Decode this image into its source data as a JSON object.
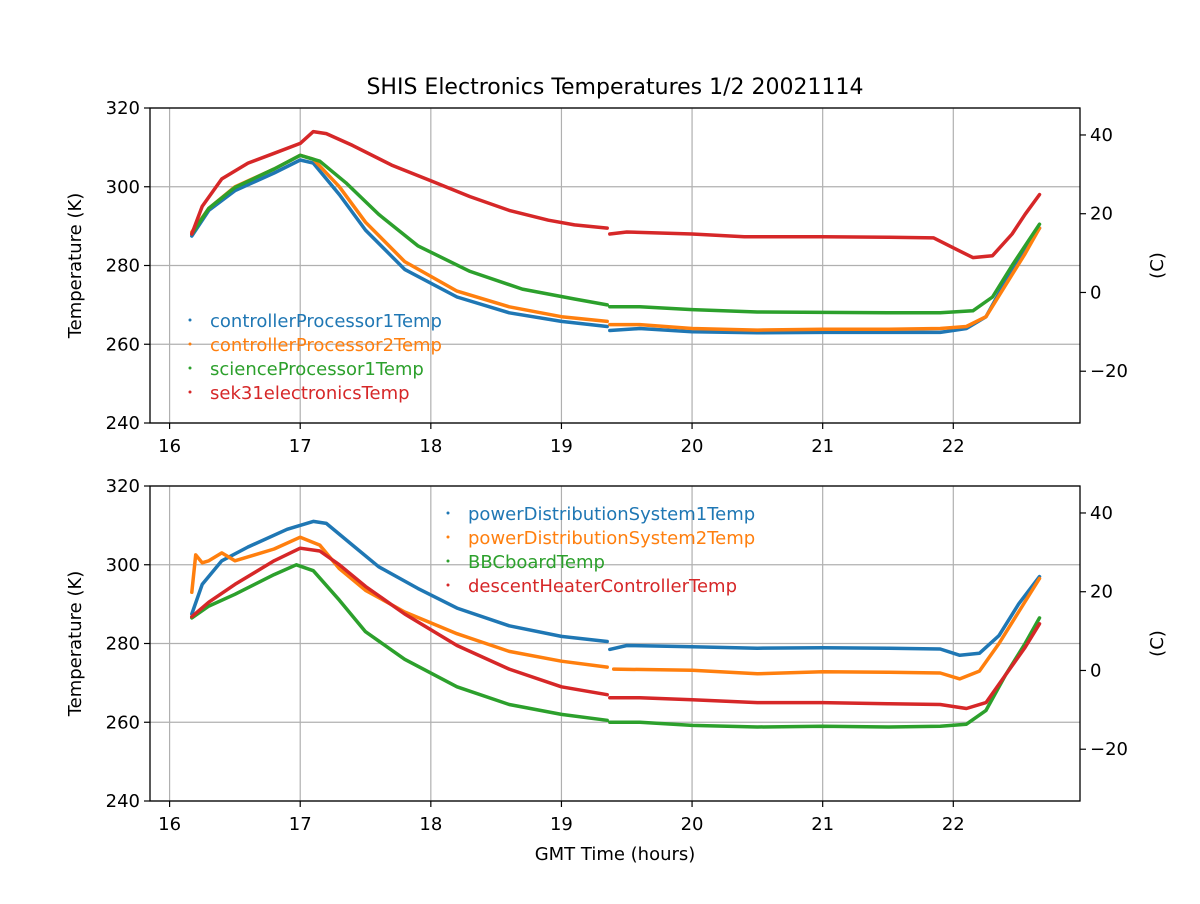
{
  "figure": {
    "title": "SHIS Electronics Temperatures 1/2 20021114",
    "xlabel": "GMT Time (hours)"
  },
  "chart_data": [
    {
      "type": "line",
      "ylabel": "Temperature (K)",
      "ylabel_right": "(C)",
      "xlim": [
        15.85,
        22.97
      ],
      "ylim": [
        240,
        320
      ],
      "xticks": [
        16,
        17,
        18,
        19,
        20,
        21,
        22
      ],
      "yticks": [
        240,
        260,
        280,
        300,
        320
      ],
      "yticks_right": [
        -20,
        0,
        20,
        40
      ],
      "grid": true,
      "legend_position": "lower-left",
      "gap_after_hour": 19.35,
      "series": [
        {
          "name": "controllerProcessor1Temp",
          "color": "#1f77b4",
          "points": [
            [
              16.17,
              287.5
            ],
            [
              16.3,
              294
            ],
            [
              16.5,
              299
            ],
            [
              16.8,
              303.5
            ],
            [
              17.0,
              306.8
            ],
            [
              17.1,
              306
            ],
            [
              17.3,
              298
            ],
            [
              17.5,
              289
            ],
            [
              17.8,
              279
            ],
            [
              18.2,
              272
            ],
            [
              18.6,
              268
            ],
            [
              19.0,
              265.8
            ],
            [
              19.35,
              264.5
            ],
            [
              19.37,
              263.5
            ],
            [
              19.6,
              264
            ],
            [
              20.0,
              263.2
            ],
            [
              20.5,
              262.9
            ],
            [
              21.0,
              263
            ],
            [
              21.5,
              263
            ],
            [
              21.9,
              263
            ],
            [
              22.1,
              264
            ],
            [
              22.25,
              267
            ],
            [
              22.4,
              276
            ],
            [
              22.55,
              284
            ],
            [
              22.66,
              289.5
            ]
          ]
        },
        {
          "name": "controllerProcessor2Temp",
          "color": "#ff7f0e",
          "points": [
            [
              16.17,
              288.5
            ],
            [
              16.3,
              294.5
            ],
            [
              16.5,
              300
            ],
            [
              16.8,
              304.5
            ],
            [
              17.0,
              308
            ],
            [
              17.1,
              307
            ],
            [
              17.3,
              300
            ],
            [
              17.5,
              291
            ],
            [
              17.8,
              281
            ],
            [
              18.2,
              273.5
            ],
            [
              18.6,
              269.5
            ],
            [
              19.0,
              267
            ],
            [
              19.35,
              265.8
            ],
            [
              19.37,
              265
            ],
            [
              19.6,
              265
            ],
            [
              20.0,
              264
            ],
            [
              20.5,
              263.6
            ],
            [
              21.0,
              263.8
            ],
            [
              21.5,
              263.8
            ],
            [
              21.9,
              264
            ],
            [
              22.1,
              264.5
            ],
            [
              22.25,
              267
            ],
            [
              22.4,
              275
            ],
            [
              22.55,
              283
            ],
            [
              22.66,
              289.5
            ]
          ]
        },
        {
          "name": "scienceProcessor1Temp",
          "color": "#2ca02c",
          "points": [
            [
              16.17,
              288
            ],
            [
              16.3,
              294.5
            ],
            [
              16.5,
              299.8
            ],
            [
              16.8,
              304.5
            ],
            [
              17.0,
              308
            ],
            [
              17.15,
              306.5
            ],
            [
              17.35,
              301
            ],
            [
              17.6,
              293
            ],
            [
              17.9,
              285
            ],
            [
              18.3,
              278.5
            ],
            [
              18.7,
              274
            ],
            [
              19.1,
              271.5
            ],
            [
              19.35,
              270
            ],
            [
              19.37,
              269.5
            ],
            [
              19.6,
              269.5
            ],
            [
              20.0,
              268.8
            ],
            [
              20.5,
              268.2
            ],
            [
              21.0,
              268.1
            ],
            [
              21.5,
              268
            ],
            [
              21.9,
              268
            ],
            [
              22.15,
              268.5
            ],
            [
              22.3,
              272
            ],
            [
              22.45,
              280
            ],
            [
              22.55,
              285
            ],
            [
              22.66,
              290.5
            ]
          ]
        },
        {
          "name": "sek31electronicsTemp",
          "color": "#d62728",
          "points": [
            [
              16.17,
              288
            ],
            [
              16.25,
              295
            ],
            [
              16.4,
              302
            ],
            [
              16.6,
              306
            ],
            [
              16.8,
              308.5
            ],
            [
              17.0,
              311
            ],
            [
              17.1,
              314
            ],
            [
              17.2,
              313.5
            ],
            [
              17.4,
              310.5
            ],
            [
              17.7,
              305.5
            ],
            [
              18.0,
              301.5
            ],
            [
              18.3,
              297.5
            ],
            [
              18.6,
              294
            ],
            [
              18.9,
              291.5
            ],
            [
              19.1,
              290.3
            ],
            [
              19.35,
              289.5
            ],
            [
              19.37,
              288
            ],
            [
              19.5,
              288.5
            ],
            [
              20.0,
              288
            ],
            [
              20.4,
              287.3
            ],
            [
              21.0,
              287.3
            ],
            [
              21.5,
              287.2
            ],
            [
              21.85,
              287
            ],
            [
              22.0,
              284.5
            ],
            [
              22.15,
              282
            ],
            [
              22.3,
              282.5
            ],
            [
              22.45,
              288
            ],
            [
              22.55,
              293
            ],
            [
              22.66,
              298
            ]
          ]
        }
      ]
    },
    {
      "type": "line",
      "ylabel": "Temperature (K)",
      "ylabel_right": "(C)",
      "xlim": [
        15.85,
        22.97
      ],
      "ylim": [
        240,
        320
      ],
      "xticks": [
        16,
        17,
        18,
        19,
        20,
        21,
        22
      ],
      "yticks": [
        240,
        260,
        280,
        300,
        320
      ],
      "yticks_right": [
        -20,
        0,
        20,
        40
      ],
      "grid": true,
      "legend_position": "upper-center",
      "series": [
        {
          "name": "powerDistributionSystem1Temp",
          "color": "#1f77b4",
          "points": [
            [
              16.17,
              287.5
            ],
            [
              16.25,
              295
            ],
            [
              16.4,
              301
            ],
            [
              16.6,
              304.5
            ],
            [
              16.9,
              309
            ],
            [
              17.1,
              311
            ],
            [
              17.2,
              310.5
            ],
            [
              17.4,
              305
            ],
            [
              17.6,
              299.5
            ],
            [
              17.9,
              294
            ],
            [
              18.2,
              289
            ],
            [
              18.6,
              284.5
            ],
            [
              19.0,
              281.8
            ],
            [
              19.35,
              280.5
            ],
            [
              19.37,
              278.5
            ],
            [
              19.5,
              279.5
            ],
            [
              20.0,
              279.2
            ],
            [
              20.5,
              278.8
            ],
            [
              21.0,
              278.9
            ],
            [
              21.5,
              278.8
            ],
            [
              21.9,
              278.6
            ],
            [
              22.05,
              277
            ],
            [
              22.2,
              277.5
            ],
            [
              22.35,
              282
            ],
            [
              22.5,
              290
            ],
            [
              22.66,
              297
            ]
          ]
        },
        {
          "name": "powerDistributionSystem2Temp",
          "color": "#ff7f0e",
          "points": [
            [
              16.17,
              293
            ],
            [
              16.2,
              302.5
            ],
            [
              16.25,
              300.5
            ],
            [
              16.3,
              301
            ],
            [
              16.4,
              303
            ],
            [
              16.5,
              301
            ],
            [
              16.65,
              302.5
            ],
            [
              16.8,
              304
            ],
            [
              17.0,
              307
            ],
            [
              17.15,
              305
            ],
            [
              17.3,
              299
            ],
            [
              17.5,
              293.5
            ],
            [
              17.8,
              288
            ],
            [
              18.2,
              282.5
            ],
            [
              18.6,
              278
            ],
            [
              19.0,
              275.5
            ],
            [
              19.35,
              274
            ],
            [
              19.37,
              271.5
            ],
            [
              19.4,
              273.5
            ],
            [
              20.0,
              273.2
            ],
            [
              20.5,
              272.3
            ],
            [
              21.0,
              272.8
            ],
            [
              21.5,
              272.7
            ],
            [
              21.9,
              272.5
            ],
            [
              22.05,
              271
            ],
            [
              22.2,
              273
            ],
            [
              22.35,
              280
            ],
            [
              22.5,
              288
            ],
            [
              22.66,
              296.5
            ]
          ]
        },
        {
          "name": "BBCboardTemp",
          "color": "#2ca02c",
          "points": [
            [
              16.17,
              286.5
            ],
            [
              16.3,
              289.5
            ],
            [
              16.5,
              292.5
            ],
            [
              16.8,
              297.5
            ],
            [
              16.97,
              300
            ],
            [
              17.1,
              298.5
            ],
            [
              17.3,
              291
            ],
            [
              17.5,
              283
            ],
            [
              17.8,
              276
            ],
            [
              18.2,
              269
            ],
            [
              18.6,
              264.5
            ],
            [
              19.0,
              262
            ],
            [
              19.35,
              260.5
            ],
            [
              19.37,
              260
            ],
            [
              19.6,
              260
            ],
            [
              20.0,
              259.2
            ],
            [
              20.5,
              258.8
            ],
            [
              21.0,
              259
            ],
            [
              21.5,
              258.8
            ],
            [
              21.9,
              259
            ],
            [
              22.1,
              259.5
            ],
            [
              22.25,
              263
            ],
            [
              22.4,
              272
            ],
            [
              22.55,
              280
            ],
            [
              22.66,
              286.5
            ]
          ]
        },
        {
          "name": "descentHeaterControllerTemp",
          "color": "#d62728",
          "points": [
            [
              16.17,
              286.8
            ],
            [
              16.3,
              290.5
            ],
            [
              16.5,
              295
            ],
            [
              16.8,
              301
            ],
            [
              17.0,
              304.2
            ],
            [
              17.15,
              303.5
            ],
            [
              17.3,
              300
            ],
            [
              17.5,
              294.5
            ],
            [
              17.8,
              287.5
            ],
            [
              18.2,
              279.5
            ],
            [
              18.6,
              273.5
            ],
            [
              19.0,
              269
            ],
            [
              19.35,
              267
            ],
            [
              19.37,
              266.2
            ],
            [
              19.6,
              266.2
            ],
            [
              20.0,
              265.7
            ],
            [
              20.5,
              265
            ],
            [
              21.0,
              265
            ],
            [
              21.5,
              264.7
            ],
            [
              21.9,
              264.5
            ],
            [
              22.1,
              263.5
            ],
            [
              22.25,
              265
            ],
            [
              22.4,
              272
            ],
            [
              22.55,
              279
            ],
            [
              22.66,
              285
            ]
          ]
        }
      ]
    }
  ]
}
